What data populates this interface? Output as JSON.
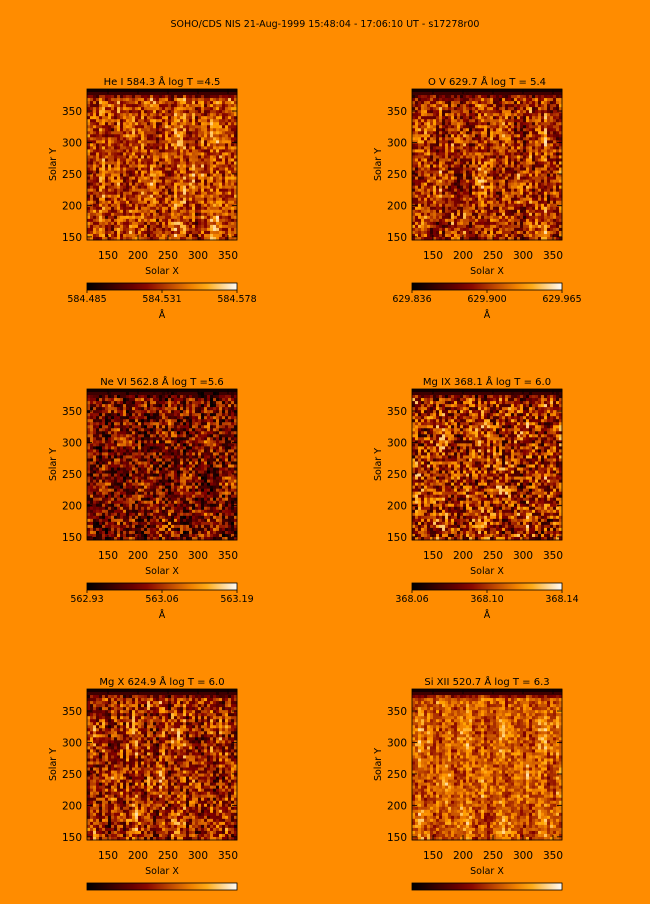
{
  "header": {
    "title": "SOHO/CDS NIS  21-Aug-1999 15:48:04 - 17:06:10 UT - s17278r00"
  },
  "chart_data": [
    {
      "type": "heatmap",
      "title": "He I  584.3 Å log T =4.5",
      "xlabel": "Solar X",
      "ylabel": "Solar Y",
      "xlim": [
        115,
        365
      ],
      "ylim": [
        145,
        385
      ],
      "xticks": [
        150,
        200,
        250,
        300,
        350
      ],
      "yticks": [
        150,
        200,
        250,
        300,
        350
      ],
      "colorbar": {
        "ticks": [
          "584.485",
          "584.531",
          "584.578"
        ],
        "unit": "Å"
      },
      "texture": {
        "seed": 11,
        "bias": 0.55,
        "contrast": 0.35,
        "streak": 0.6
      }
    },
    {
      "type": "heatmap",
      "title": "O V  629.7 Å log T = 5.4",
      "xlabel": "Solar X",
      "ylabel": "Solar Y",
      "xlim": [
        115,
        365
      ],
      "ylim": [
        145,
        385
      ],
      "xticks": [
        150,
        200,
        250,
        300,
        350
      ],
      "yticks": [
        150,
        200,
        250,
        300,
        350
      ],
      "colorbar": {
        "ticks": [
          "629.836",
          "629.900",
          "629.965"
        ],
        "unit": "Å"
      },
      "texture": {
        "seed": 23,
        "bias": 0.5,
        "contrast": 0.38,
        "streak": 0.6
      }
    },
    {
      "type": "heatmap",
      "title": "Ne VI  562.8 Å log T =5.6",
      "xlabel": "Solar X",
      "ylabel": "Solar Y",
      "xlim": [
        115,
        365
      ],
      "ylim": [
        145,
        385
      ],
      "xticks": [
        150,
        200,
        250,
        300,
        350
      ],
      "yticks": [
        150,
        200,
        250,
        300,
        350
      ],
      "colorbar": {
        "ticks": [
          "562.93",
          "563.06",
          "563.19"
        ],
        "unit": "Å"
      },
      "texture": {
        "seed": 37,
        "bias": 0.36,
        "contrast": 0.45,
        "streak": 0.2
      }
    },
    {
      "type": "heatmap",
      "title": "Mg IX  368.1 Å log T = 6.0",
      "xlabel": "Solar X",
      "ylabel": "Solar Y",
      "xlim": [
        115,
        365
      ],
      "ylim": [
        145,
        385
      ],
      "xticks": [
        150,
        200,
        250,
        300,
        350
      ],
      "yticks": [
        150,
        200,
        250,
        300,
        350
      ],
      "colorbar": {
        "ticks": [
          "368.06",
          "368.10",
          "368.14"
        ],
        "unit": "Å"
      },
      "texture": {
        "seed": 51,
        "bias": 0.48,
        "contrast": 0.5,
        "streak": 0.15
      }
    },
    {
      "type": "heatmap",
      "title": "Mg X  624.9 Å log T = 6.0",
      "xlabel": "Solar X",
      "ylabel": "Solar Y",
      "xlim": [
        115,
        365
      ],
      "ylim": [
        145,
        385
      ],
      "xticks": [
        150,
        200,
        250,
        300,
        350
      ],
      "yticks": [
        150,
        200,
        250,
        300,
        350
      ],
      "colorbar": {
        "ticks": [],
        "unit": ""
      },
      "texture": {
        "seed": 67,
        "bias": 0.5,
        "contrast": 0.4,
        "streak": 0.55
      }
    },
    {
      "type": "heatmap",
      "title": "Si XII  520.7 Å log T = 6.3",
      "xlabel": "Solar X",
      "ylabel": "Solar Y",
      "xlim": [
        115,
        365
      ],
      "ylim": [
        145,
        385
      ],
      "xticks": [
        150,
        200,
        250,
        300,
        350
      ],
      "yticks": [
        150,
        200,
        250,
        300,
        350
      ],
      "colorbar": {
        "ticks": [],
        "unit": ""
      },
      "texture": {
        "seed": 79,
        "bias": 0.62,
        "contrast": 0.25,
        "streak": 0.7
      }
    }
  ]
}
